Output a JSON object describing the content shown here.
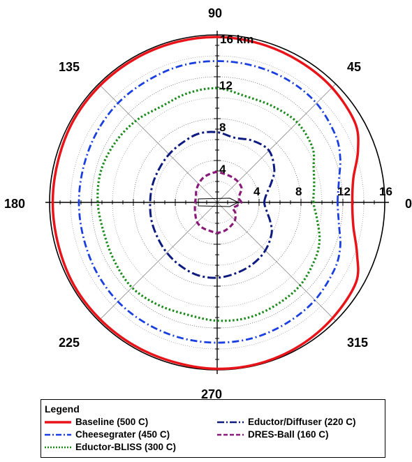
{
  "chart_data": {
    "type": "polar-line",
    "radial_unit": "km",
    "radial_ticks": [
      4,
      8,
      12,
      16
    ],
    "radial_tick_labels_along_90": [
      "4",
      "8",
      "12",
      "16 km"
    ],
    "radial_tick_labels_along_0": [
      "4",
      "8",
      "12",
      "16"
    ],
    "rmax": 16,
    "angle_labels": [
      "0",
      "45",
      "90",
      "135",
      "180",
      "225",
      "270",
      "315"
    ],
    "grid": true,
    "legend": {
      "title": "Legend",
      "placement": "bottom"
    },
    "series": [
      {
        "name": "Baseline (500 C)",
        "color": "#e8141a",
        "dash": "solid",
        "points": [
          [
            0,
            12.9
          ],
          [
            10,
            13.2
          ],
          [
            20,
            14.3
          ],
          [
            30,
            15.2
          ],
          [
            45,
            15.5
          ],
          [
            60,
            15.6
          ],
          [
            75,
            15.7
          ],
          [
            90,
            15.8
          ],
          [
            105,
            15.8
          ],
          [
            120,
            15.8
          ],
          [
            135,
            15.8
          ],
          [
            150,
            15.8
          ],
          [
            165,
            15.7
          ],
          [
            180,
            15.7
          ],
          [
            195,
            15.7
          ],
          [
            210,
            15.8
          ],
          [
            225,
            15.8
          ],
          [
            240,
            15.8
          ],
          [
            255,
            15.8
          ],
          [
            270,
            15.9
          ],
          [
            285,
            15.9
          ],
          [
            300,
            15.8
          ],
          [
            315,
            15.6
          ],
          [
            330,
            15.3
          ],
          [
            340,
            14.2
          ],
          [
            350,
            13.2
          ]
        ]
      },
      {
        "name": "Cheesegrater (450 C)",
        "color": "#1a3fe0",
        "dash": "dashdot",
        "points": [
          [
            0,
            11.5
          ],
          [
            10,
            11.8
          ],
          [
            20,
            12.5
          ],
          [
            30,
            13.0
          ],
          [
            45,
            13.4
          ],
          [
            60,
            13.5
          ],
          [
            75,
            13.5
          ],
          [
            90,
            13.5
          ],
          [
            105,
            13.5
          ],
          [
            120,
            13.4
          ],
          [
            135,
            13.4
          ],
          [
            150,
            13.3
          ],
          [
            165,
            13.2
          ],
          [
            180,
            13.2
          ],
          [
            195,
            13.2
          ],
          [
            210,
            13.3
          ],
          [
            225,
            13.4
          ],
          [
            240,
            13.4
          ],
          [
            255,
            13.4
          ],
          [
            270,
            13.4
          ],
          [
            285,
            13.4
          ],
          [
            300,
            13.3
          ],
          [
            315,
            13.2
          ],
          [
            330,
            12.9
          ],
          [
            340,
            12.5
          ],
          [
            350,
            11.8
          ]
        ]
      },
      {
        "name": "Eductor-BLISS (300 C)",
        "color": "#1a8a1a",
        "dash": "dotted",
        "points": [
          [
            0,
            9.2
          ],
          [
            10,
            9.4
          ],
          [
            20,
            9.8
          ],
          [
            30,
            10.5
          ],
          [
            45,
            10.8
          ],
          [
            60,
            10.6
          ],
          [
            75,
            10.5
          ],
          [
            90,
            10.9
          ],
          [
            105,
            10.8
          ],
          [
            120,
            10.6
          ],
          [
            135,
            11.0
          ],
          [
            150,
            11.3
          ],
          [
            165,
            11.5
          ],
          [
            180,
            11.4
          ],
          [
            195,
            11.2
          ],
          [
            210,
            11.3
          ],
          [
            225,
            11.5
          ],
          [
            240,
            11.3
          ],
          [
            255,
            11.1
          ],
          [
            270,
            11.3
          ],
          [
            285,
            11.4
          ],
          [
            300,
            11.3
          ],
          [
            315,
            11.2
          ],
          [
            330,
            10.8
          ],
          [
            340,
            10.4
          ],
          [
            350,
            9.7
          ]
        ]
      },
      {
        "name": "Eductor/Diffuser (220 C)",
        "color": "#0d1a80",
        "dash": "longdashdot",
        "points": [
          [
            0,
            4.5
          ],
          [
            10,
            4.8
          ],
          [
            20,
            5.5
          ],
          [
            30,
            6.3
          ],
          [
            45,
            7.0
          ],
          [
            60,
            6.8
          ],
          [
            75,
            6.4
          ],
          [
            90,
            6.7
          ],
          [
            105,
            6.8
          ],
          [
            120,
            6.6
          ],
          [
            135,
            6.5
          ],
          [
            150,
            6.4
          ],
          [
            165,
            6.4
          ],
          [
            180,
            6.4
          ],
          [
            195,
            6.5
          ],
          [
            210,
            6.6
          ],
          [
            225,
            6.8
          ],
          [
            240,
            7.0
          ],
          [
            255,
            7.2
          ],
          [
            270,
            7.2
          ],
          [
            285,
            7.0
          ],
          [
            300,
            6.8
          ],
          [
            315,
            6.5
          ],
          [
            330,
            6.0
          ],
          [
            340,
            5.4
          ],
          [
            350,
            4.8
          ]
        ]
      },
      {
        "name": "DRES-Ball (160 C)",
        "color": "#8a1a78",
        "dash": "dashed",
        "points": [
          [
            0,
            2.3
          ],
          [
            10,
            2.1
          ],
          [
            20,
            2.3
          ],
          [
            30,
            2.7
          ],
          [
            45,
            2.8
          ],
          [
            60,
            2.8
          ],
          [
            75,
            2.8
          ],
          [
            90,
            2.9
          ],
          [
            105,
            2.8
          ],
          [
            120,
            2.7
          ],
          [
            135,
            2.5
          ],
          [
            150,
            2.3
          ],
          [
            165,
            2.1
          ],
          [
            180,
            2.1
          ],
          [
            195,
            2.2
          ],
          [
            210,
            2.4
          ],
          [
            225,
            2.7
          ],
          [
            240,
            2.8
          ],
          [
            255,
            2.8
          ],
          [
            270,
            2.9
          ],
          [
            285,
            2.8
          ],
          [
            300,
            2.6
          ],
          [
            315,
            2.4
          ],
          [
            330,
            2.0
          ],
          [
            340,
            1.6
          ],
          [
            350,
            1.9
          ]
        ]
      }
    ]
  }
}
